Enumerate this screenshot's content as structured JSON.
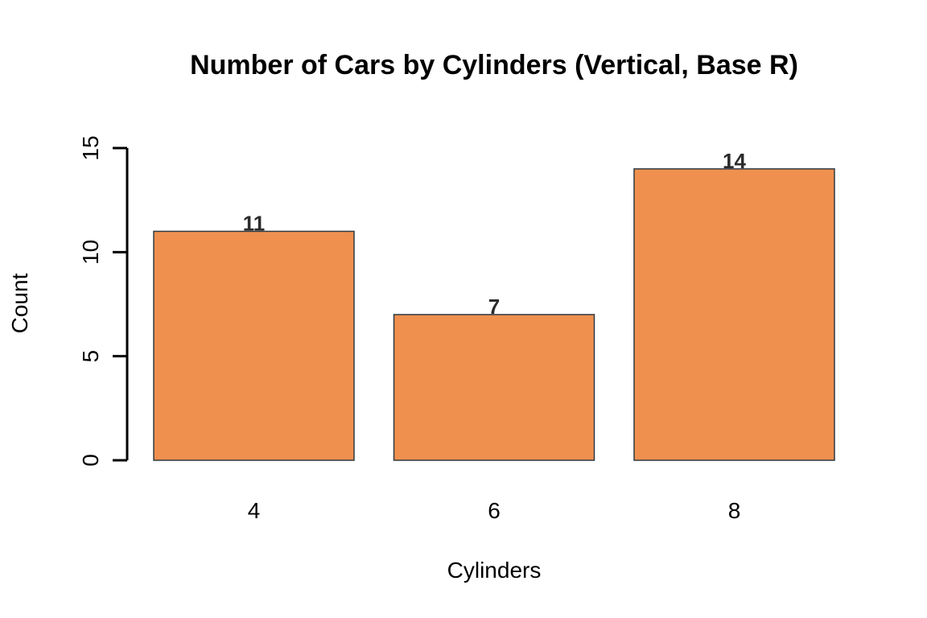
{
  "chart_data": {
    "type": "bar",
    "title": "Number of Cars by Cylinders (Vertical, Base R)",
    "xlabel": "Cylinders",
    "ylabel": "Count",
    "categories": [
      "4",
      "6",
      "8"
    ],
    "values": [
      11,
      7,
      14
    ],
    "data_labels": [
      "11",
      "7",
      "14"
    ],
    "ylim": [
      0,
      15
    ],
    "yticks": [
      0,
      5,
      10,
      15
    ],
    "ytick_labels": [
      "0",
      "5",
      "10",
      "15"
    ],
    "grid": false,
    "legend": "none",
    "colors": {
      "bar_fill": "#EF904F",
      "bar_stroke": "#2E3B44",
      "label_text": "#2B2B2B"
    }
  }
}
